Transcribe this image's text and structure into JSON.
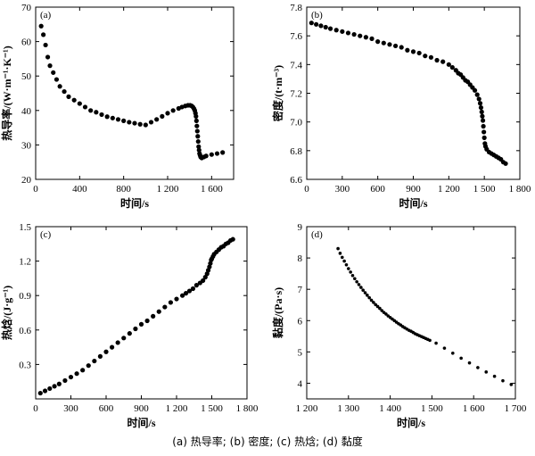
{
  "caption": "(a) 热导率; (b) 密度; (c) 热焓; (d) 黏度",
  "colors": {
    "marker": "#000000",
    "axis": "#000000",
    "background": "#ffffff"
  },
  "chart_data": [
    {
      "type": "scatter",
      "panel": "(a)",
      "xlabel": "时间/s",
      "ylabel": "热导率/(W·m⁻¹·K⁻¹)",
      "xlim": [
        0,
        1800
      ],
      "ylim": [
        20,
        70
      ],
      "xticks": [
        0,
        400,
        800,
        1200,
        1600
      ],
      "xtick_labels": [
        "0",
        "400",
        "800",
        "1 200",
        "1 600"
      ],
      "yticks": [
        20,
        30,
        40,
        50,
        60,
        70
      ],
      "ytick_labels": [
        "20",
        "30",
        "40",
        "50",
        "60",
        "70"
      ],
      "grid": false,
      "series": [
        {
          "x": [
            50,
            70,
            90,
            110,
            130,
            160,
            190,
            220,
            260,
            300,
            350,
            400,
            450,
            500,
            550,
            600,
            650,
            700,
            750,
            800,
            850,
            900,
            950,
            1000,
            1050,
            1100,
            1150,
            1200,
            1250,
            1300,
            1330,
            1360,
            1385,
            1405,
            1420,
            1430,
            1440,
            1447,
            1453,
            1458,
            1462,
            1466,
            1470,
            1474,
            1478,
            1482,
            1486,
            1490,
            1495,
            1500,
            1510,
            1530,
            1550,
            1600,
            1650,
            1700
          ],
          "y": [
            64.5,
            62,
            59,
            55.5,
            53,
            51,
            49,
            47,
            45.5,
            44,
            43,
            42,
            41,
            40,
            39.5,
            38.8,
            38.2,
            37.8,
            37.4,
            37.0,
            36.6,
            36.3,
            36.0,
            35.8,
            36.6,
            37.4,
            38.3,
            39.2,
            40.0,
            40.6,
            41.0,
            41.3,
            41.5,
            41.5,
            41.3,
            41.0,
            40.5,
            40.0,
            39.2,
            38.3,
            37.0,
            35.5,
            34.0,
            32.5,
            31.0,
            29.5,
            28.5,
            27.5,
            27.0,
            26.5,
            26.2,
            26.5,
            26.8,
            27.2,
            27.5,
            27.8
          ]
        }
      ]
    },
    {
      "type": "scatter",
      "panel": "(b)",
      "xlabel": "时间/s",
      "ylabel": "密度/(t·m⁻³)",
      "xlim": [
        0,
        1800
      ],
      "ylim": [
        6.6,
        7.8
      ],
      "xticks": [
        0,
        300,
        600,
        900,
        1200,
        1500,
        1800
      ],
      "xtick_labels": [
        "0",
        "300",
        "600",
        "900",
        "1 200",
        "1 500",
        "1 800"
      ],
      "yticks": [
        6.6,
        6.8,
        7.0,
        7.2,
        7.4,
        7.6,
        7.8
      ],
      "ytick_labels": [
        "6.6",
        "6.8",
        "7.0",
        "7.2",
        "7.4",
        "7.6",
        "7.8"
      ],
      "grid": false,
      "series": [
        {
          "x": [
            40,
            80,
            120,
            160,
            200,
            250,
            300,
            350,
            400,
            450,
            500,
            550,
            600,
            650,
            700,
            750,
            800,
            850,
            900,
            950,
            1000,
            1050,
            1100,
            1150,
            1200,
            1230,
            1260,
            1280,
            1300,
            1320,
            1340,
            1360,
            1380,
            1400,
            1420,
            1440,
            1455,
            1465,
            1472,
            1478,
            1483,
            1488,
            1492,
            1496,
            1500,
            1505,
            1510,
            1520,
            1540,
            1560,
            1580,
            1600,
            1620,
            1640,
            1660,
            1680
          ],
          "y": [
            7.69,
            7.68,
            7.67,
            7.66,
            7.65,
            7.64,
            7.63,
            7.62,
            7.61,
            7.6,
            7.59,
            7.58,
            7.56,
            7.55,
            7.54,
            7.53,
            7.52,
            7.5,
            7.49,
            7.48,
            7.46,
            7.45,
            7.43,
            7.42,
            7.4,
            7.38,
            7.36,
            7.34,
            7.33,
            7.31,
            7.29,
            7.28,
            7.26,
            7.24,
            7.22,
            7.19,
            7.16,
            7.13,
            7.1,
            7.07,
            7.04,
            7.01,
            6.97,
            6.93,
            6.89,
            6.85,
            6.83,
            6.81,
            6.79,
            6.78,
            6.77,
            6.76,
            6.75,
            6.74,
            6.72,
            6.71
          ]
        }
      ]
    },
    {
      "type": "scatter",
      "panel": "(c)",
      "xlabel": "时间/s",
      "ylabel": "热焓/(J·g⁻¹)",
      "xlim": [
        0,
        1800
      ],
      "ylim": [
        0,
        1.5
      ],
      "xticks": [
        0,
        300,
        600,
        900,
        1200,
        1500,
        1800
      ],
      "xtick_labels": [
        "0",
        "300",
        "600",
        "900",
        "1 200",
        "1 500",
        "1 800"
      ],
      "yticks": [
        0.3,
        0.6,
        0.9,
        1.2,
        1.5
      ],
      "ytick_labels": [
        "0.3",
        "0.6",
        "0.9",
        "1.2",
        "1.5"
      ],
      "grid": false,
      "series": [
        {
          "x": [
            40,
            80,
            120,
            160,
            200,
            250,
            300,
            350,
            400,
            450,
            500,
            550,
            600,
            650,
            700,
            750,
            800,
            850,
            900,
            950,
            1000,
            1050,
            1100,
            1150,
            1200,
            1250,
            1280,
            1310,
            1340,
            1370,
            1400,
            1425,
            1445,
            1460,
            1470,
            1480,
            1488,
            1495,
            1500,
            1510,
            1520,
            1540,
            1560,
            1580,
            1600,
            1620,
            1640,
            1660,
            1680
          ],
          "y": [
            0.05,
            0.07,
            0.09,
            0.11,
            0.13,
            0.16,
            0.19,
            0.22,
            0.25,
            0.29,
            0.33,
            0.37,
            0.41,
            0.45,
            0.49,
            0.53,
            0.57,
            0.61,
            0.65,
            0.68,
            0.72,
            0.76,
            0.8,
            0.84,
            0.87,
            0.9,
            0.92,
            0.94,
            0.96,
            0.99,
            1.01,
            1.03,
            1.06,
            1.09,
            1.12,
            1.15,
            1.18,
            1.21,
            1.22,
            1.24,
            1.26,
            1.28,
            1.3,
            1.32,
            1.33,
            1.35,
            1.36,
            1.38,
            1.39
          ]
        }
      ]
    },
    {
      "type": "scatter",
      "panel": "(d)",
      "xlabel": "时间/s",
      "ylabel": "黏度/(Pa·s)",
      "xlim": [
        1200,
        1700
      ],
      "ylim": [
        3.5,
        9
      ],
      "xticks": [
        1200,
        1300,
        1400,
        1500,
        1600,
        1700
      ],
      "xtick_labels": [
        "1 200",
        "1 300",
        "1 400",
        "1 500",
        "1 600",
        "1 700"
      ],
      "yticks": [
        4,
        5,
        6,
        7,
        8,
        9
      ],
      "ytick_labels": [
        "4",
        "5",
        "6",
        "7",
        "8",
        "9"
      ],
      "grid": false,
      "series": [
        {
          "x": [
            1275,
            1280,
            1285,
            1290,
            1295,
            1300,
            1305,
            1310,
            1315,
            1320,
            1325,
            1330,
            1335,
            1340,
            1345,
            1350,
            1355,
            1360,
            1365,
            1370,
            1375,
            1380,
            1385,
            1390,
            1395,
            1400,
            1405,
            1410,
            1415,
            1420,
            1425,
            1430,
            1435,
            1440,
            1445,
            1450,
            1455,
            1460,
            1465,
            1470,
            1475,
            1480,
            1485,
            1490,
            1495,
            1510,
            1530,
            1550,
            1570,
            1590,
            1610,
            1630,
            1650,
            1670,
            1690
          ],
          "y": [
            8.3,
            8.15,
            8.02,
            7.9,
            7.78,
            7.66,
            7.55,
            7.44,
            7.34,
            7.24,
            7.15,
            7.06,
            6.97,
            6.89,
            6.81,
            6.73,
            6.65,
            6.58,
            6.51,
            6.45,
            6.39,
            6.32,
            6.26,
            6.21,
            6.15,
            6.1,
            6.05,
            6.0,
            5.95,
            5.9,
            5.86,
            5.81,
            5.77,
            5.73,
            5.69,
            5.66,
            5.62,
            5.58,
            5.55,
            5.52,
            5.49,
            5.46,
            5.43,
            5.4,
            5.37,
            5.28,
            5.12,
            4.96,
            4.8,
            4.65,
            4.5,
            4.36,
            4.22,
            4.08,
            3.96
          ]
        }
      ]
    }
  ]
}
